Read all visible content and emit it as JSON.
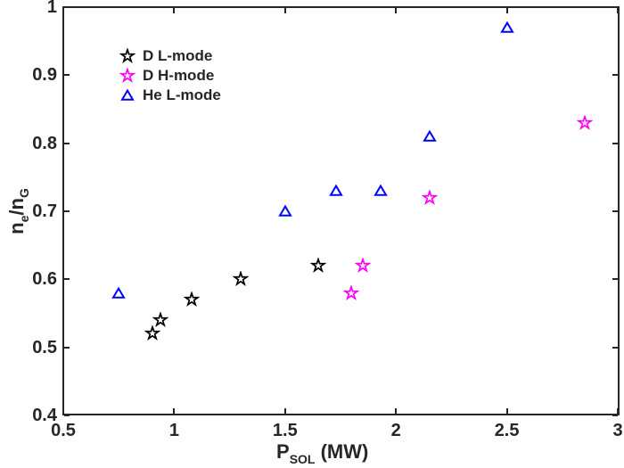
{
  "chart_data": {
    "type": "scatter",
    "title": "",
    "xlabel": "P_SOL (MW)",
    "ylabel": "n_e/n_G",
    "xlabel_parts": {
      "main": "P",
      "sub": "SOL",
      "suffix": " (MW)"
    },
    "ylabel_parts": {
      "pre": "n",
      "sub1": "e",
      "mid": "/n",
      "sub2": "G"
    },
    "xlim": [
      0.5,
      3
    ],
    "ylim": [
      0.4,
      1
    ],
    "x_tick_values": [
      0.5,
      1,
      1.5,
      2,
      2.5,
      3
    ],
    "x_tick_labels": [
      "0.5",
      "1",
      "1.5",
      "2",
      "2.5",
      "3"
    ],
    "y_tick_values": [
      0.4,
      0.5,
      0.6,
      0.7,
      0.8,
      0.9,
      1.0
    ],
    "y_tick_labels": [
      "0.4",
      "0.5",
      "0.6",
      "0.7",
      "0.8",
      "0.9",
      "1"
    ],
    "grid": false,
    "box": true,
    "tick_direction": "in",
    "legend_position": "upper-left-inside",
    "legend_frame": false,
    "series": [
      {
        "name": "D L-mode",
        "marker": "pentagram",
        "color": "#000000",
        "points": [
          [
            0.9,
            0.52
          ],
          [
            0.94,
            0.54
          ],
          [
            1.08,
            0.57
          ],
          [
            1.3,
            0.6
          ],
          [
            1.65,
            0.62
          ]
        ]
      },
      {
        "name": "D H-mode",
        "marker": "pentagram",
        "color": "#FF00FF",
        "points": [
          [
            1.8,
            0.58
          ],
          [
            1.85,
            0.62
          ],
          [
            2.15,
            0.72
          ],
          [
            2.85,
            0.83
          ]
        ]
      },
      {
        "name": "He L-mode",
        "marker": "triangle-up",
        "color": "#0000FF",
        "points": [
          [
            0.75,
            0.58
          ],
          [
            1.5,
            0.7
          ],
          [
            1.73,
            0.73
          ],
          [
            1.93,
            0.73
          ],
          [
            2.15,
            0.81
          ],
          [
            2.5,
            0.97
          ]
        ]
      }
    ],
    "colors": {
      "axis": "#262626",
      "background": "#FFFFFF"
    }
  }
}
